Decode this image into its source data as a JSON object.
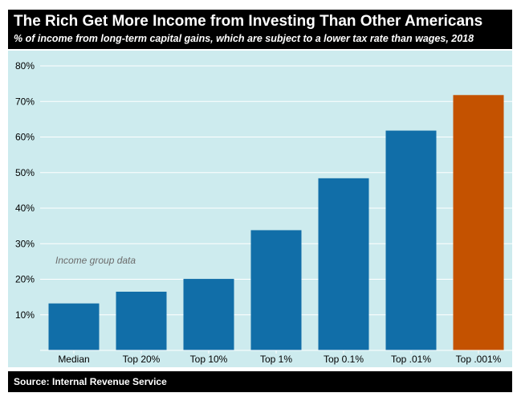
{
  "chart_data": {
    "type": "bar",
    "title": "The Rich Get More Income from Investing Than Other Americans",
    "subtitle": "% of income from long-term capital gains, which are subject to a lower tax rate than wages, 2018",
    "categories": [
      "Median",
      "Top 20%",
      "Top 10%",
      "Top 1%",
      "Top 0.1%",
      "Top .01%",
      "Top .001%"
    ],
    "values": [
      13.2,
      16.5,
      20.1,
      33.8,
      48.4,
      61.8,
      71.8
    ],
    "ylim": [
      0,
      80
    ],
    "yticks": [
      10,
      20,
      30,
      40,
      50,
      60,
      70,
      80
    ],
    "ytick_labels": [
      "10%",
      "20%",
      "30%",
      "40%",
      "50%",
      "60%",
      "70%",
      "80%"
    ],
    "annotation": "Income group data",
    "grid": true,
    "colors": {
      "bar": "#116ea8",
      "highlight_bar": "#c45200",
      "background": "#cdebee",
      "grid": "#ffffff"
    },
    "highlight_index": 6,
    "source": "Source: Internal Revenue Service"
  }
}
